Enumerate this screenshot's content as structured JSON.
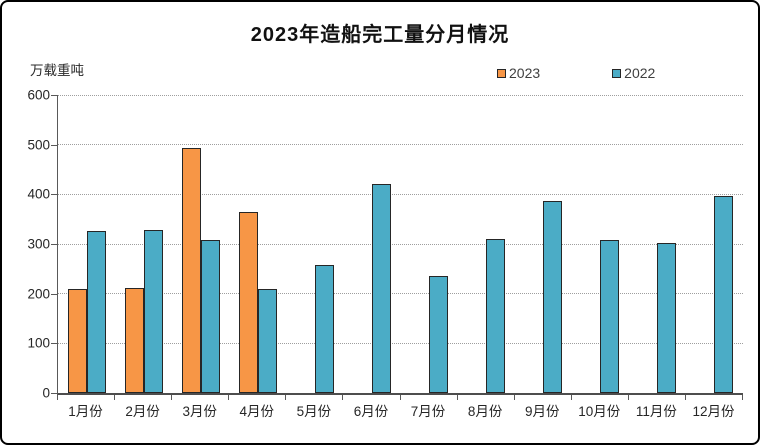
{
  "title": "2023年造船完工量分月情况",
  "y_axis_unit": "万载重吨",
  "legend": [
    {
      "label": "2023",
      "color": "#F79646"
    },
    {
      "label": "2022",
      "color": "#4BACC6"
    }
  ],
  "colors": {
    "series_2023": "#F79646",
    "series_2022": "#4BACC6",
    "bar_border": "#262626",
    "gridline": "#9e9e9e",
    "axis": "#595959"
  },
  "chart_data": {
    "type": "bar",
    "title": "2023年造船完工量分月情况",
    "ylabel": "万载重吨",
    "xlabel": "",
    "categories": [
      "1月份",
      "2月份",
      "3月份",
      "4月份",
      "5月份",
      "6月份",
      "7月份",
      "8月份",
      "9月份",
      "10月份",
      "11月份",
      "12月份"
    ],
    "series": [
      {
        "name": "2023",
        "color": "#F79646",
        "values": [
          210,
          211,
          494,
          365,
          null,
          null,
          null,
          null,
          null,
          null,
          null,
          null
        ]
      },
      {
        "name": "2022",
        "color": "#4BACC6",
        "values": [
          327,
          328,
          308,
          209,
          257,
          421,
          236,
          310,
          386,
          308,
          303,
          396
        ]
      }
    ],
    "ylim": [
      0,
      600
    ],
    "yticks": [
      0,
      100,
      200,
      300,
      400,
      500,
      600
    ],
    "grid": true,
    "gridstyle": "dotted",
    "legend_position": "top-inside"
  }
}
